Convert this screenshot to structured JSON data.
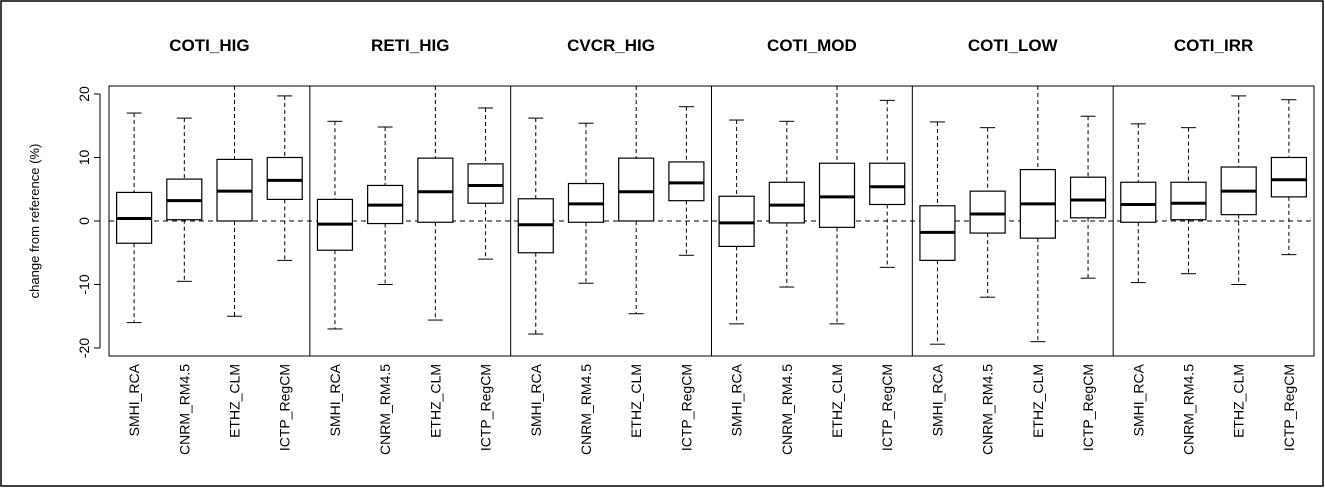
{
  "chart_data": {
    "type": "boxplot",
    "panels": [
      "COTI_HIG",
      "RETI_HIG",
      "CVCR_HIG",
      "COTI_MOD",
      "COTI_LOW",
      "COTI_IRR"
    ],
    "categories": [
      "SMHI_RCA",
      "CNRM_RM4.5",
      "ETHZ_CLM",
      "ICTP_RegCM"
    ],
    "ylabel": "change from reference (%)",
    "ylim": [
      -22,
      22
    ],
    "yticks": [
      -20,
      -10,
      0,
      10,
      20
    ],
    "reference_line": 0,
    "boxes": [
      [
        {
          "min": -16,
          "q1": -3.5,
          "median": 0.4,
          "q3": 4.5,
          "max": 17
        },
        {
          "min": -9.5,
          "q1": 0.2,
          "median": 3.2,
          "q3": 6.6,
          "max": 16.2
        },
        {
          "min": -15,
          "q1": 0,
          "median": 4.7,
          "q3": 9.7,
          "max": 22
        },
        {
          "min": -6.2,
          "q1": 3.4,
          "median": 6.4,
          "q3": 10,
          "max": 19.7
        }
      ],
      [
        {
          "min": -17,
          "q1": -4.6,
          "median": -0.5,
          "q3": 3.4,
          "max": 15.7
        },
        {
          "min": -10,
          "q1": -0.4,
          "median": 2.5,
          "q3": 5.6,
          "max": 14.8
        },
        {
          "min": -15.6,
          "q1": -0.2,
          "median": 4.6,
          "q3": 9.9,
          "max": 22
        },
        {
          "min": -6,
          "q1": 2.8,
          "median": 5.6,
          "q3": 9,
          "max": 17.8
        }
      ],
      [
        {
          "min": -17.8,
          "q1": -5,
          "median": -0.6,
          "q3": 3.5,
          "max": 16.2
        },
        {
          "min": -9.8,
          "q1": -0.2,
          "median": 2.7,
          "q3": 5.9,
          "max": 15.4
        },
        {
          "min": -14.6,
          "q1": 0,
          "median": 4.6,
          "q3": 9.9,
          "max": 22
        },
        {
          "min": -5.4,
          "q1": 3.2,
          "median": 6,
          "q3": 9.3,
          "max": 18
        }
      ],
      [
        {
          "min": -16.2,
          "q1": -4,
          "median": -0.3,
          "q3": 3.9,
          "max": 15.9
        },
        {
          "min": -10.4,
          "q1": -0.3,
          "median": 2.5,
          "q3": 6.1,
          "max": 15.7
        },
        {
          "min": -16.2,
          "q1": -1,
          "median": 3.8,
          "q3": 9.1,
          "max": 22
        },
        {
          "min": -7.3,
          "q1": 2.6,
          "median": 5.4,
          "q3": 9.1,
          "max": 19
        }
      ],
      [
        {
          "min": -19.4,
          "q1": -6.2,
          "median": -1.8,
          "q3": 2.4,
          "max": 15.6
        },
        {
          "min": -12,
          "q1": -1.9,
          "median": 1.1,
          "q3": 4.7,
          "max": 14.7
        },
        {
          "min": -19,
          "q1": -2.7,
          "median": 2.7,
          "q3": 8.1,
          "max": 22
        },
        {
          "min": -9,
          "q1": 0.5,
          "median": 3.3,
          "q3": 6.9,
          "max": 16.5
        }
      ],
      [
        {
          "min": -9.7,
          "q1": -0.2,
          "median": 2.6,
          "q3": 6.1,
          "max": 15.3
        },
        {
          "min": -8.3,
          "q1": 0.2,
          "median": 2.8,
          "q3": 6.1,
          "max": 14.7
        },
        {
          "min": -10,
          "q1": 1,
          "median": 4.7,
          "q3": 8.5,
          "max": 19.7
        },
        {
          "min": -5.3,
          "q1": 3.8,
          "median": 6.5,
          "q3": 10,
          "max": 19.1
        }
      ]
    ]
  }
}
